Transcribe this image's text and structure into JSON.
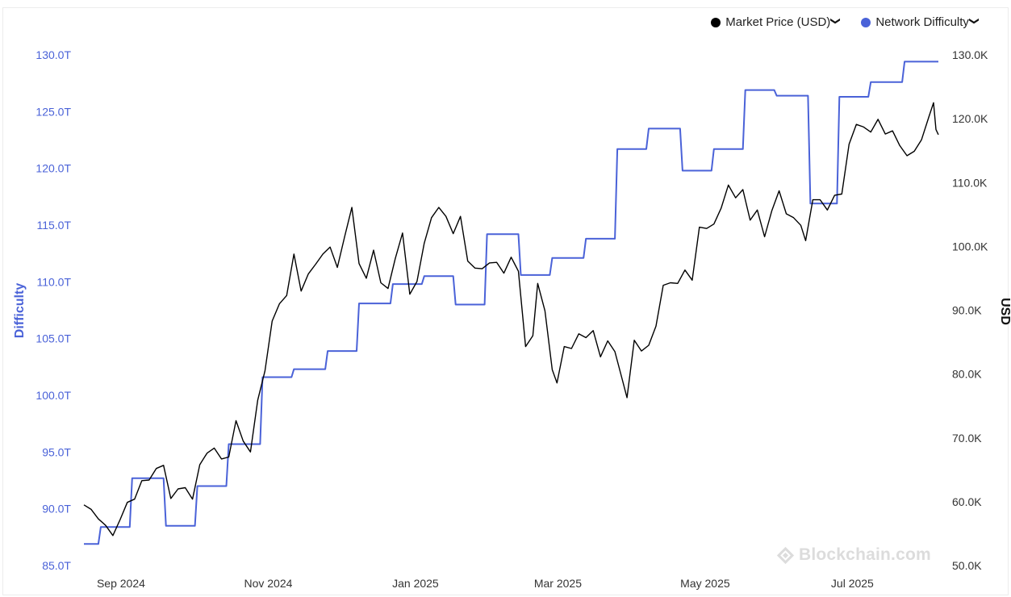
{
  "legend": {
    "price_label": "Market Price (USD)",
    "difficulty_label": "Network Difficulty",
    "chevron_icon": "chevron-down-icon"
  },
  "watermark": {
    "text": "Blockchain.com",
    "icon": "blockchain-logo-icon"
  },
  "colors": {
    "difficulty": "#4a62d8",
    "price": "#000000",
    "left_axis_text": "#4a62d8",
    "right_axis_text": "#333333"
  },
  "chart_data": {
    "type": "line",
    "x_range": [
      "2024-08-27",
      "2025-08-16"
    ],
    "x_ticks": [
      {
        "date": "2024-09-01",
        "label": "Sep 2024"
      },
      {
        "date": "2024-11-01",
        "label": "Nov 2024"
      },
      {
        "date": "2025-01-01",
        "label": "Jan 2025"
      },
      {
        "date": "2025-03-01",
        "label": "Mar 2025"
      },
      {
        "date": "2025-05-01",
        "label": "May 2025"
      },
      {
        "date": "2025-07-01",
        "label": "Jul 2025"
      }
    ],
    "y_left": {
      "label": "Difficulty",
      "range": [
        85,
        130
      ],
      "ticks": [
        "85.0T",
        "90.0T",
        "95.0T",
        "100.0T",
        "105.0T",
        "110.0T",
        "115.0T",
        "120.0T",
        "125.0T",
        "130.0T"
      ]
    },
    "y_right": {
      "label": "USD",
      "range": [
        50000,
        130000
      ],
      "ticks": [
        "50.0K",
        "60.0K",
        "70.0K",
        "80.0K",
        "90.0K",
        "100.0K",
        "110.0K",
        "120.0K",
        "130.0K"
      ]
    },
    "grid": false,
    "legend_position": "top-right",
    "series": [
      {
        "name": "Network Difficulty",
        "axis": "left",
        "unit": "T",
        "step": true,
        "points": [
          [
            "2024-08-27",
            86.9
          ],
          [
            "2024-09-03",
            88.4
          ],
          [
            "2024-09-16",
            92.7
          ],
          [
            "2024-09-30",
            88.5
          ],
          [
            "2024-10-13",
            92.0
          ],
          [
            "2024-10-26",
            95.7
          ],
          [
            "2024-11-09",
            101.6
          ],
          [
            "2024-11-22",
            102.3
          ],
          [
            "2024-12-06",
            103.9
          ],
          [
            "2024-12-19",
            108.1
          ],
          [
            "2025-01-02",
            109.8
          ],
          [
            "2025-01-15",
            110.5
          ],
          [
            "2025-01-28",
            108.0
          ],
          [
            "2025-02-10",
            114.2
          ],
          [
            "2025-02-24",
            110.6
          ],
          [
            "2025-03-09",
            112.1
          ],
          [
            "2025-03-23",
            113.8
          ],
          [
            "2025-04-05",
            121.7
          ],
          [
            "2025-04-18",
            123.5
          ],
          [
            "2025-05-02",
            119.8
          ],
          [
            "2025-05-15",
            121.7
          ],
          [
            "2025-05-28",
            126.9
          ],
          [
            "2025-06-10",
            126.4
          ],
          [
            "2025-06-24",
            116.9
          ],
          [
            "2025-07-06",
            126.3
          ],
          [
            "2025-07-19",
            127.6
          ],
          [
            "2025-08-02",
            129.4
          ],
          [
            "2025-08-16",
            129.4
          ]
        ]
      },
      {
        "name": "Market Price (USD)",
        "axis": "right",
        "unit": "USD",
        "step": false,
        "points": [
          [
            "2024-08-27",
            59500
          ],
          [
            "2024-08-30",
            58800
          ],
          [
            "2024-09-02",
            57300
          ],
          [
            "2024-09-05",
            56300
          ],
          [
            "2024-09-08",
            54700
          ],
          [
            "2024-09-11",
            57200
          ],
          [
            "2024-09-14",
            59900
          ],
          [
            "2024-09-17",
            60400
          ],
          [
            "2024-09-20",
            63300
          ],
          [
            "2024-09-23",
            63400
          ],
          [
            "2024-09-26",
            65200
          ],
          [
            "2024-09-29",
            65700
          ],
          [
            "2024-10-02",
            60500
          ],
          [
            "2024-10-05",
            62000
          ],
          [
            "2024-10-08",
            62200
          ],
          [
            "2024-10-11",
            60400
          ],
          [
            "2024-10-14",
            65800
          ],
          [
            "2024-10-17",
            67600
          ],
          [
            "2024-10-20",
            68400
          ],
          [
            "2024-10-23",
            66700
          ],
          [
            "2024-10-26",
            67000
          ],
          [
            "2024-10-29",
            72700
          ],
          [
            "2024-11-01",
            69500
          ],
          [
            "2024-11-04",
            67800
          ],
          [
            "2024-11-07",
            75900
          ],
          [
            "2024-11-10",
            80500
          ],
          [
            "2024-11-13",
            88300
          ],
          [
            "2024-11-16",
            91000
          ],
          [
            "2024-11-19",
            92300
          ],
          [
            "2024-11-22",
            98800
          ],
          [
            "2024-11-25",
            93000
          ],
          [
            "2024-11-28",
            95700
          ],
          [
            "2024-12-01",
            97200
          ],
          [
            "2024-12-04",
            98800
          ],
          [
            "2024-12-07",
            99900
          ],
          [
            "2024-12-10",
            96700
          ],
          [
            "2024-12-13",
            101500
          ],
          [
            "2024-12-16",
            106100
          ],
          [
            "2024-12-19",
            97300
          ],
          [
            "2024-12-22",
            95000
          ],
          [
            "2024-12-25",
            99400
          ],
          [
            "2024-12-28",
            94300
          ],
          [
            "2024-12-31",
            93400
          ],
          [
            "2025-01-03",
            98100
          ],
          [
            "2025-01-06",
            102100
          ],
          [
            "2025-01-09",
            92500
          ],
          [
            "2025-01-12",
            94500
          ],
          [
            "2025-01-15",
            100500
          ],
          [
            "2025-01-18",
            104500
          ],
          [
            "2025-01-21",
            106100
          ],
          [
            "2025-01-24",
            104700
          ],
          [
            "2025-01-27",
            102000
          ],
          [
            "2025-01-30",
            104700
          ],
          [
            "2025-02-02",
            97700
          ],
          [
            "2025-02-05",
            96600
          ],
          [
            "2025-02-08",
            96500
          ],
          [
            "2025-02-11",
            97400
          ],
          [
            "2025-02-14",
            97500
          ],
          [
            "2025-02-17",
            95800
          ],
          [
            "2025-02-20",
            98300
          ],
          [
            "2025-02-23",
            96100
          ],
          [
            "2025-02-26",
            84300
          ],
          [
            "2025-03-01",
            86000
          ],
          [
            "2025-03-03",
            94200
          ],
          [
            "2025-03-06",
            89900
          ],
          [
            "2025-03-09",
            80700
          ],
          [
            "2025-03-11",
            78600
          ],
          [
            "2025-03-14",
            84300
          ],
          [
            "2025-03-17",
            84000
          ],
          [
            "2025-03-20",
            86300
          ],
          [
            "2025-03-23",
            85700
          ],
          [
            "2025-03-26",
            86800
          ],
          [
            "2025-03-29",
            82700
          ],
          [
            "2025-04-01",
            85200
          ],
          [
            "2025-04-04",
            83500
          ],
          [
            "2025-04-07",
            79200
          ],
          [
            "2025-04-09",
            76300
          ],
          [
            "2025-04-12",
            85300
          ],
          [
            "2025-04-15",
            83600
          ],
          [
            "2025-04-18",
            84500
          ],
          [
            "2025-04-21",
            87500
          ],
          [
            "2025-04-24",
            93900
          ],
          [
            "2025-04-27",
            94300
          ],
          [
            "2025-04-30",
            94200
          ],
          [
            "2025-05-03",
            96300
          ],
          [
            "2025-05-06",
            94700
          ],
          [
            "2025-05-09",
            103000
          ],
          [
            "2025-05-12",
            102800
          ],
          [
            "2025-05-15",
            103500
          ],
          [
            "2025-05-18",
            106000
          ],
          [
            "2025-05-21",
            109600
          ],
          [
            "2025-05-24",
            107600
          ],
          [
            "2025-05-27",
            108900
          ],
          [
            "2025-05-30",
            104100
          ],
          [
            "2025-06-02",
            105700
          ],
          [
            "2025-06-05",
            101500
          ],
          [
            "2025-06-08",
            105600
          ],
          [
            "2025-06-11",
            108700
          ],
          [
            "2025-06-14",
            105100
          ],
          [
            "2025-06-17",
            104500
          ],
          [
            "2025-06-20",
            103300
          ],
          [
            "2025-06-22",
            100900
          ],
          [
            "2025-06-25",
            107300
          ],
          [
            "2025-06-28",
            107300
          ],
          [
            "2025-07-01",
            105700
          ],
          [
            "2025-07-04",
            108000
          ],
          [
            "2025-07-07",
            108200
          ],
          [
            "2025-07-10",
            116000
          ],
          [
            "2025-07-13",
            119100
          ],
          [
            "2025-07-16",
            118700
          ],
          [
            "2025-07-19",
            117900
          ],
          [
            "2025-07-22",
            119900
          ],
          [
            "2025-07-25",
            117600
          ],
          [
            "2025-07-28",
            118100
          ],
          [
            "2025-07-31",
            115800
          ],
          [
            "2025-08-03",
            114200
          ],
          [
            "2025-08-06",
            114900
          ],
          [
            "2025-08-09",
            116700
          ],
          [
            "2025-08-12",
            120200
          ],
          [
            "2025-08-14",
            122500
          ],
          [
            "2025-08-15",
            118300
          ],
          [
            "2025-08-16",
            117500
          ]
        ]
      }
    ]
  }
}
